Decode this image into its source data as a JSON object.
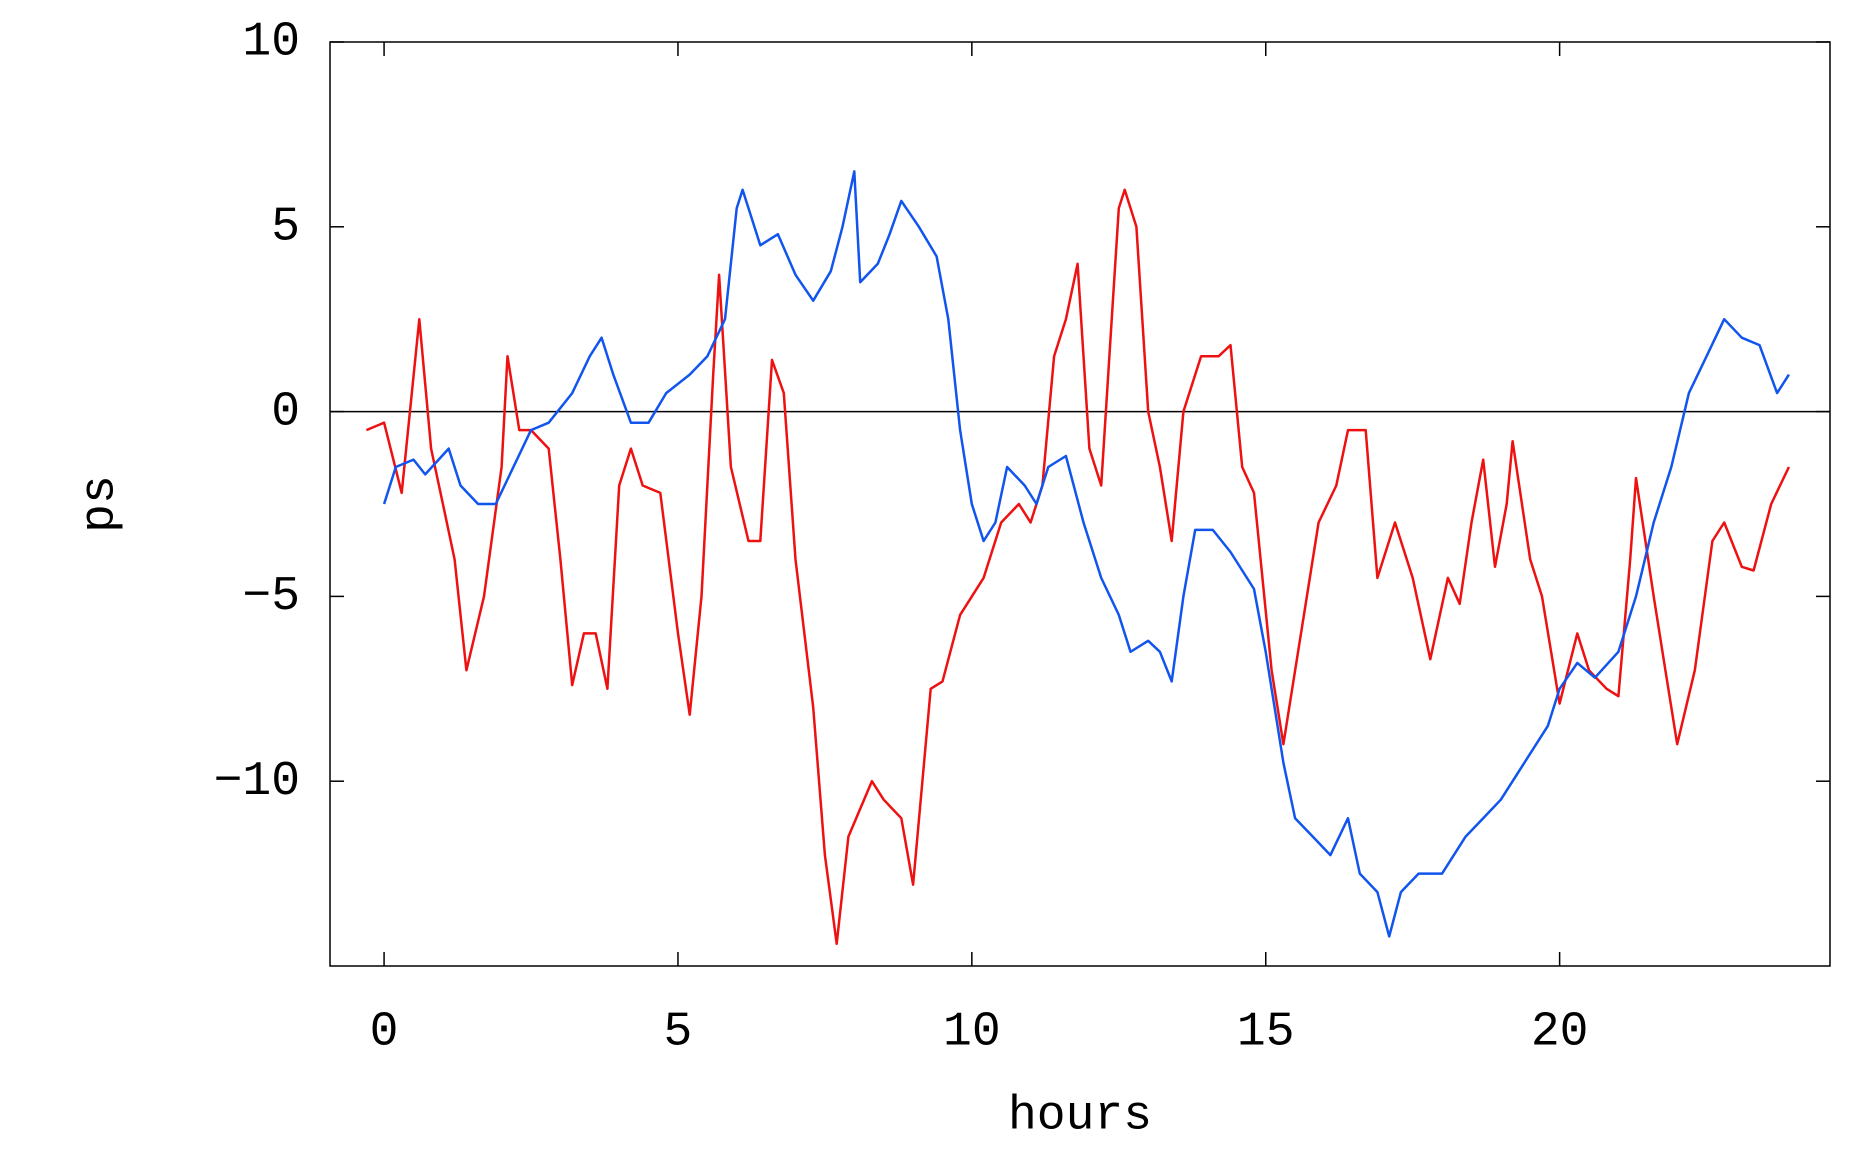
{
  "chart_data": {
    "type": "line",
    "xlabel": "hours",
    "ylabel": "ps",
    "xlim": [
      -0.92,
      24.6
    ],
    "ylim": [
      -15,
      10
    ],
    "xticks": [
      0,
      5,
      10,
      15,
      20
    ],
    "yticks": [
      {
        "value": -10,
        "label": "−10"
      },
      {
        "value": -5,
        "label": "−5"
      },
      0,
      5,
      10
    ],
    "zero_line": true,
    "series": [
      {
        "color": "#ee1111",
        "x": [
          -0.3,
          0,
          0.3,
          0.6,
          0.8,
          1.0,
          1.2,
          1.4,
          1.7,
          2.0,
          2.1,
          2.3,
          2.5,
          2.8,
          3.0,
          3.2,
          3.4,
          3.6,
          3.8,
          4.0,
          4.2,
          4.4,
          4.7,
          5.0,
          5.2,
          5.4,
          5.6,
          5.7,
          5.9,
          6.2,
          6.4,
          6.6,
          6.8,
          7.0,
          7.3,
          7.5,
          7.7,
          7.9,
          8.3,
          8.5,
          8.8,
          9.0,
          9.3,
          9.5,
          9.8,
          10.2,
          10.5,
          10.8,
          11.0,
          11.2,
          11.4,
          11.6,
          11.8,
          12.0,
          12.2,
          12.4,
          12.5,
          12.6,
          12.8,
          13.0,
          13.2,
          13.4,
          13.6,
          13.9,
          14.2,
          14.4,
          14.6,
          14.8,
          15.1,
          15.3,
          15.6,
          15.9,
          16.2,
          16.4,
          16.7,
          16.9,
          17.2,
          17.5,
          17.8,
          18.1,
          18.3,
          18.5,
          18.7,
          18.9,
          19.1,
          19.2,
          19.5,
          19.7,
          20.0,
          20.3,
          20.5,
          20.8,
          21.0,
          21.2,
          21.3,
          21.6,
          21.8,
          22.0,
          22.3,
          22.6,
          22.8,
          23.1,
          23.3,
          23.6,
          23.9
        ],
        "values": [
          -0.5,
          -0.3,
          -2.2,
          2.5,
          -1,
          -2.5,
          -4,
          -7,
          -5,
          -1.5,
          1.5,
          -0.5,
          -0.5,
          -1,
          -4,
          -7.4,
          -6,
          -6,
          -7.5,
          -2,
          -1,
          -2,
          -2.2,
          -6,
          -8.2,
          -5,
          1,
          3.7,
          -1.5,
          -3.5,
          -3.5,
          1.4,
          0.5,
          -4,
          -8,
          -12,
          -14.4,
          -11.5,
          -10,
          -10.5,
          -11,
          -12.8,
          -7.5,
          -7.3,
          -5.5,
          -4.5,
          -3,
          -2.5,
          -3,
          -2,
          1.5,
          2.5,
          4,
          -1,
          -2,
          3,
          5.5,
          6,
          5,
          0,
          -1.5,
          -3.5,
          0,
          1.5,
          1.5,
          1.8,
          -1.5,
          -2.2,
          -7,
          -9,
          -6,
          -3,
          -2,
          -0.5,
          -0.5,
          -4.5,
          -3,
          -4.5,
          -6.7,
          -4.5,
          -5.2,
          -3,
          -1.3,
          -4.2,
          -2.5,
          -0.8,
          -4,
          -5,
          -7.9,
          -6,
          -7,
          -7.5,
          -7.7,
          -4,
          -1.8,
          -5,
          -7,
          -9,
          -7,
          -3.5,
          -3,
          -4.2,
          -4.3,
          -2.5,
          -1.5
        ]
      },
      {
        "color": "#1155ee",
        "x": [
          0,
          0.2,
          0.5,
          0.7,
          1.1,
          1.3,
          1.6,
          1.9,
          2.2,
          2.5,
          2.8,
          3.2,
          3.5,
          3.7,
          3.9,
          4.2,
          4.5,
          4.8,
          5.2,
          5.5,
          5.8,
          6.0,
          6.1,
          6.4,
          6.7,
          7.0,
          7.3,
          7.6,
          7.8,
          8.0,
          8.1,
          8.4,
          8.6,
          8.8,
          9.1,
          9.4,
          9.6,
          9.8,
          10.0,
          10.2,
          10.4,
          10.6,
          10.9,
          11.1,
          11.3,
          11.6,
          11.9,
          12.2,
          12.5,
          12.7,
          13.0,
          13.2,
          13.4,
          13.6,
          13.8,
          14.1,
          14.4,
          14.8,
          15.0,
          15.3,
          15.5,
          15.8,
          16.1,
          16.4,
          16.6,
          16.9,
          17.1,
          17.3,
          17.6,
          18.0,
          18.4,
          18.7,
          19.0,
          19.4,
          19.8,
          20.0,
          20.3,
          20.6,
          21.0,
          21.3,
          21.6,
          21.9,
          22.2,
          22.5,
          22.8,
          23.1,
          23.4,
          23.7,
          23.9
        ],
        "values": [
          -2.5,
          -1.5,
          -1.3,
          -1.7,
          -1,
          -2,
          -2.5,
          -2.5,
          -1.5,
          -0.5,
          -0.3,
          0.5,
          1.5,
          2,
          1,
          -0.3,
          -0.3,
          0.5,
          1,
          1.5,
          2.5,
          5.5,
          6,
          4.5,
          4.8,
          3.7,
          3,
          3.8,
          5,
          6.5,
          3.5,
          4,
          4.8,
          5.7,
          5,
          4.2,
          2.5,
          -0.5,
          -2.5,
          -3.5,
          -3,
          -1.5,
          -2,
          -2.5,
          -1.5,
          -1.2,
          -3,
          -4.5,
          -5.5,
          -6.5,
          -6.2,
          -6.5,
          -7.3,
          -5,
          -3.2,
          -3.2,
          -3.8,
          -4.8,
          -6.5,
          -9.5,
          -11,
          -11.5,
          -12,
          -11,
          -12.5,
          -13,
          -14.2,
          -13,
          -12.5,
          -12.5,
          -11.5,
          -11,
          -10.5,
          -9.5,
          -8.5,
          -7.5,
          -6.8,
          -7.2,
          -6.5,
          -5,
          -3,
          -1.5,
          0.5,
          1.5,
          2.5,
          2,
          1.8,
          0.5,
          1
        ]
      }
    ]
  }
}
